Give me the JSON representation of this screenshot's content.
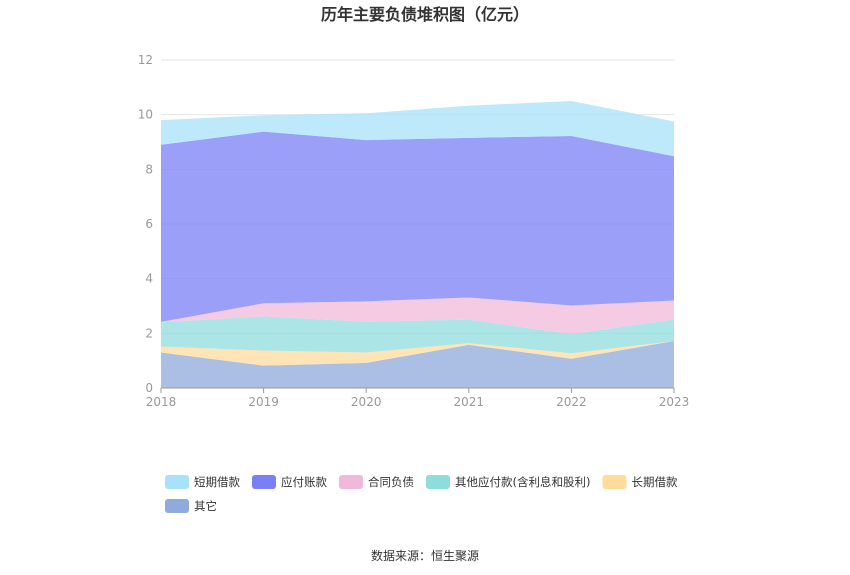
{
  "chart_data": {
    "type": "area",
    "stacked": true,
    "title": "历年主要负债堆积图（亿元）",
    "x": [
      "2018",
      "2019",
      "2020",
      "2021",
      "2022",
      "2023"
    ],
    "y_ticks": [
      "0",
      "2",
      "4",
      "6",
      "8",
      "10",
      "12"
    ],
    "ylim": [
      0,
      12
    ],
    "grid": true,
    "legend_position": "bottom",
    "series": [
      {
        "name": "其它",
        "color": "#8faadc",
        "values": [
          1.3,
          0.82,
          0.92,
          1.58,
          1.07,
          1.72
        ]
      },
      {
        "name": "长期借款",
        "color": "#ffdb9c",
        "values": [
          0.22,
          0.55,
          0.38,
          0.06,
          0.2,
          0.0
        ]
      },
      {
        "name": "其他应付款(含利息和股利)",
        "color": "#8fdcdc",
        "values": [
          0.88,
          1.25,
          1.12,
          0.86,
          0.7,
          0.78
        ]
      },
      {
        "name": "合同负债",
        "color": "#f0b9d9",
        "values": [
          0.02,
          0.48,
          0.75,
          0.81,
          1.05,
          0.7
        ]
      },
      {
        "name": "应付账款",
        "color": "#7b7ff5",
        "values": [
          6.48,
          6.28,
          5.9,
          5.84,
          6.2,
          5.28
        ]
      },
      {
        "name": "短期借款",
        "color": "#a8e2fa",
        "values": [
          0.9,
          0.6,
          0.98,
          1.18,
          1.28,
          1.27
        ]
      }
    ],
    "legend_order": [
      "短期借款",
      "应付账款",
      "合同负债",
      "其他应付款(含利息和股利)",
      "长期借款",
      "其它"
    ]
  },
  "source_text": "数据来源：恒生聚源"
}
